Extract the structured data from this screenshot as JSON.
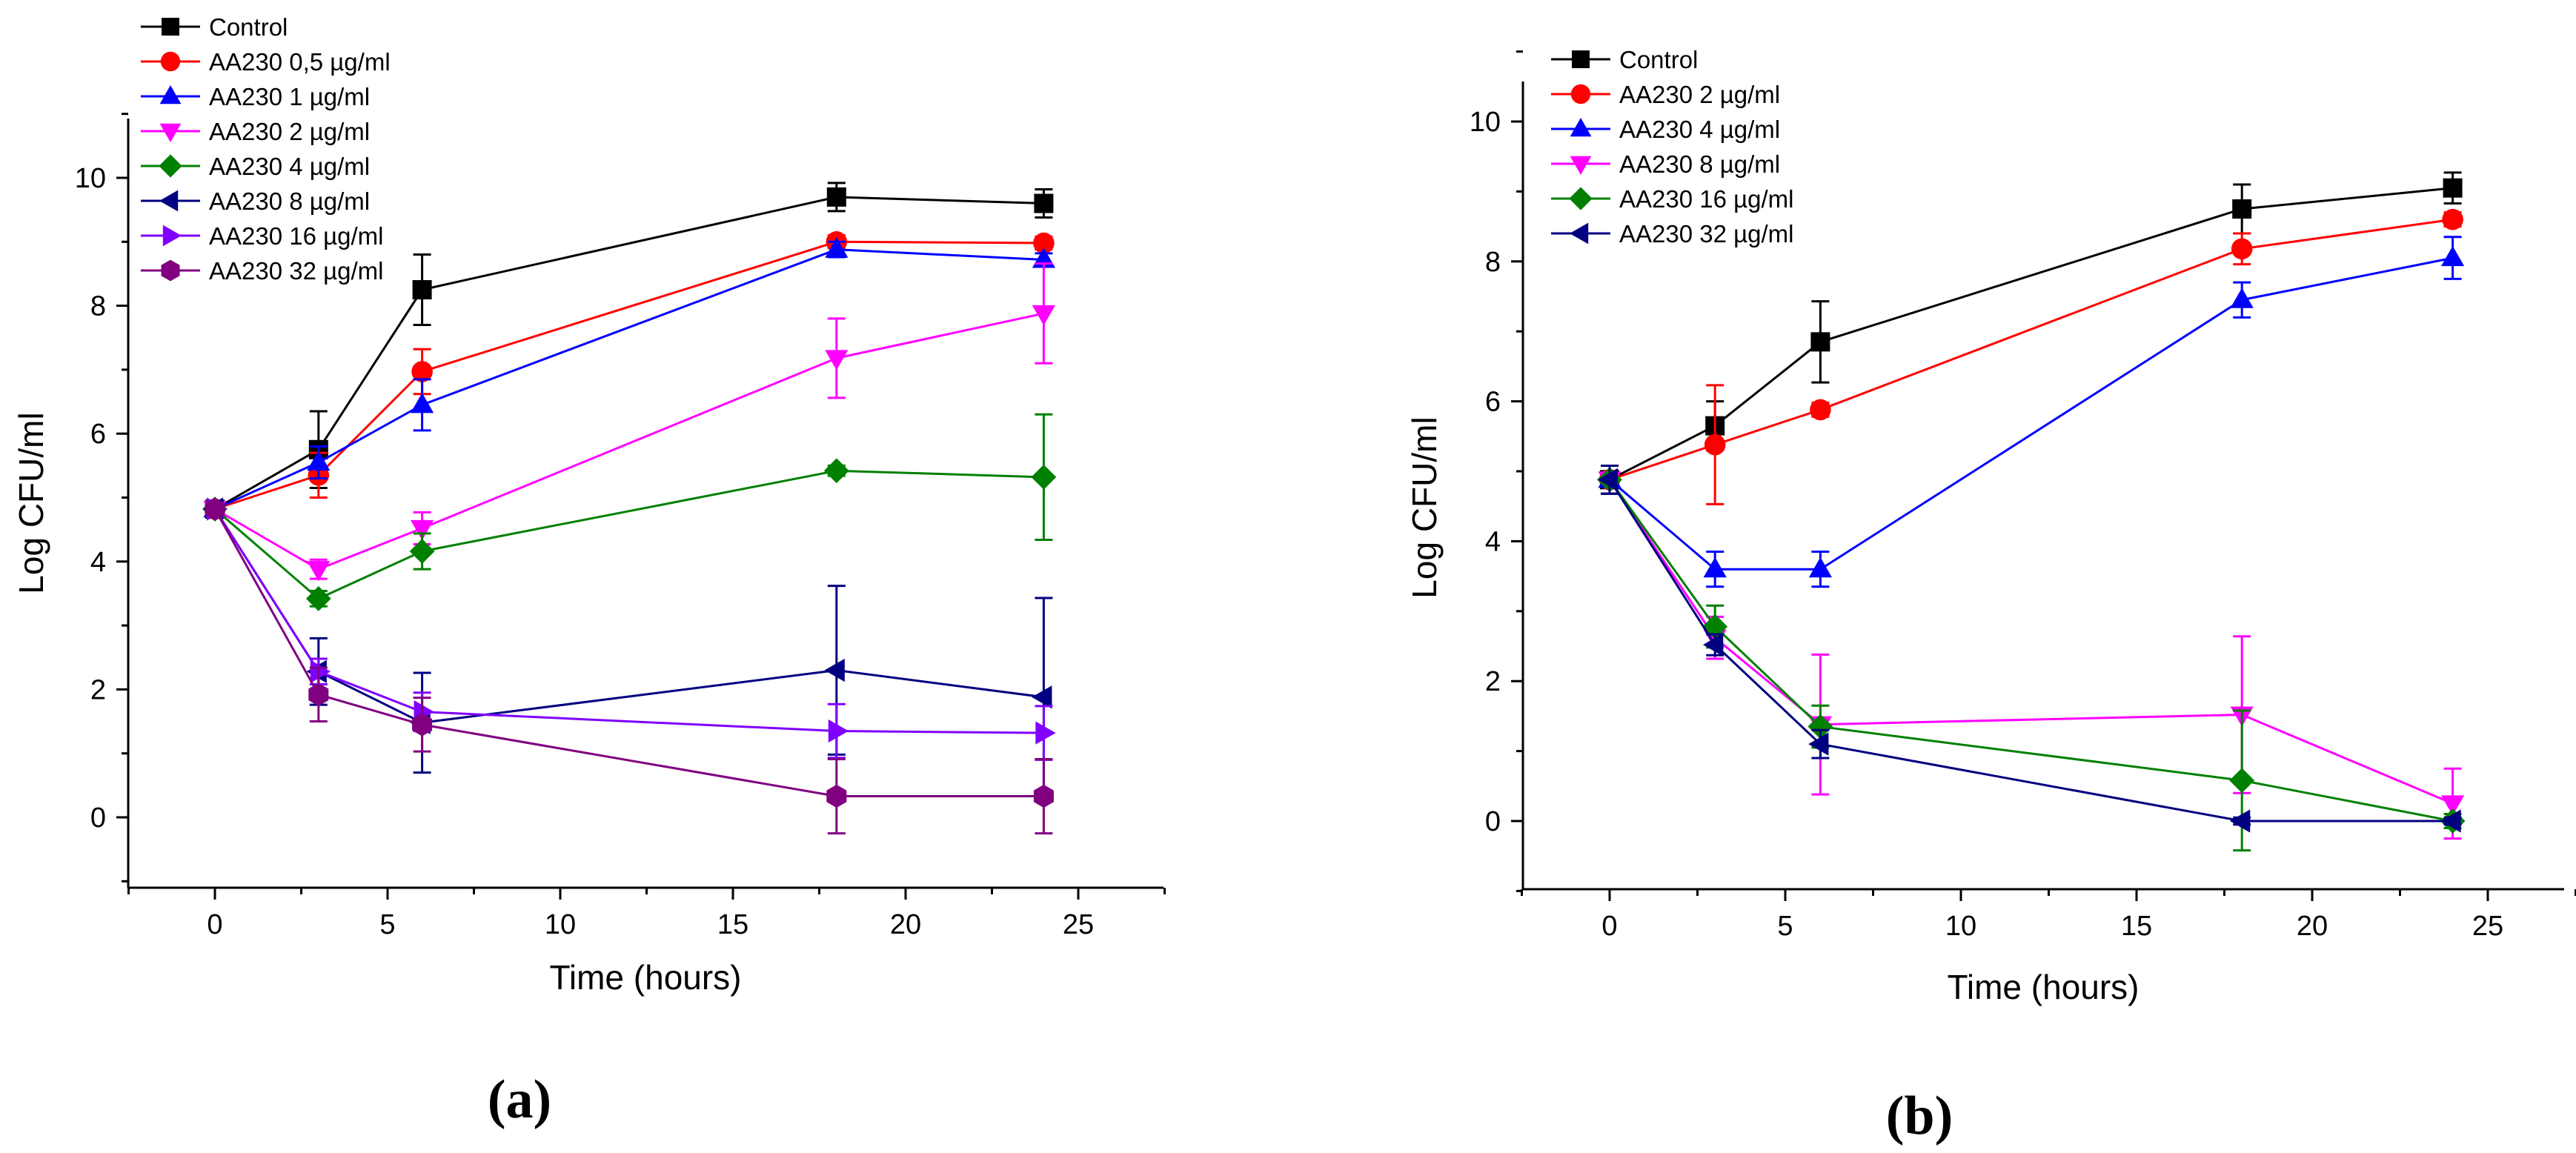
{
  "chart_data": [
    {
      "type": "line",
      "panel_label": "(a)",
      "xlabel": "Time (hours)",
      "ylabel": "Log CFU/ml",
      "xlim": [
        -2.5,
        27.5
      ],
      "ylim": [
        -1,
        11
      ],
      "xticks": [
        "0",
        "5",
        "10",
        "15",
        "20",
        "25"
      ],
      "yticks": [
        "0",
        "2",
        "4",
        "6",
        "8",
        "10"
      ],
      "grid": false,
      "legend_position": "top-left",
      "x": [
        0,
        3,
        6,
        18,
        24
      ],
      "series": [
        {
          "name": "Control",
          "color": "#000000",
          "marker": "square",
          "values": [
            4.82,
            5.75,
            8.25,
            9.7,
            9.6
          ],
          "errors": [
            0.1,
            0.6,
            0.55,
            0.22,
            0.22
          ]
        },
        {
          "name": "AA230 0,5 µg/ml",
          "color": "#ff0000",
          "marker": "circle",
          "values": [
            4.82,
            5.35,
            6.97,
            9.0,
            8.98
          ],
          "errors": [
            0.1,
            0.35,
            0.35,
            0.1,
            0.1
          ]
        },
        {
          "name": "AA230 1 µg/ml",
          "color": "#0000ff",
          "marker": "triangle-up",
          "values": [
            4.82,
            5.55,
            6.45,
            8.88,
            8.72
          ],
          "errors": [
            0.1,
            0.25,
            0.4,
            0.12,
            0.1
          ]
        },
        {
          "name": "AA230 2 µg/ml",
          "color": "#ff00ff",
          "marker": "triangle-down",
          "values": [
            4.82,
            3.88,
            4.52,
            7.18,
            7.88
          ],
          "errors": [
            0.1,
            0.15,
            0.25,
            0.62,
            0.78
          ]
        },
        {
          "name": "AA230 4 µg/ml",
          "color": "#008000",
          "marker": "diamond",
          "values": [
            4.82,
            3.42,
            4.16,
            5.42,
            5.32
          ],
          "errors": [
            0.1,
            0.12,
            0.28,
            0.08,
            0.98
          ]
        },
        {
          "name": "AA230 8 µg/ml",
          "color": "#000080",
          "marker": "triangle-left",
          "values": [
            4.82,
            2.28,
            1.48,
            2.3,
            1.88
          ],
          "errors": [
            0.1,
            0.52,
            0.78,
            1.32,
            1.55
          ]
        },
        {
          "name": "AA230 16 µg/ml",
          "color": "#8000ff",
          "marker": "triangle-right",
          "values": [
            4.82,
            2.28,
            1.65,
            1.35,
            1.32
          ],
          "errors": [
            0.1,
            0.2,
            0.3,
            0.42,
            0.42
          ]
        },
        {
          "name": "AA230 32 µg/ml",
          "color": "#800080",
          "marker": "hexagon",
          "values": [
            4.82,
            1.92,
            1.45,
            0.33,
            0.33
          ],
          "errors": [
            0.1,
            0.42,
            0.42,
            0.58,
            0.58
          ]
        }
      ]
    },
    {
      "type": "line",
      "panel_label": "(b)",
      "xlabel": "Time (hours)",
      "ylabel": "Log CFU/ml",
      "xlim": [
        -2.5,
        27.5
      ],
      "ylim": [
        -1,
        11
      ],
      "xticks": [
        "0",
        "5",
        "10",
        "15",
        "20",
        "25"
      ],
      "yticks": [
        "0",
        "2",
        "4",
        "6",
        "8",
        "10"
      ],
      "grid": false,
      "legend_position": "top-left",
      "x": [
        0,
        3,
        6,
        18,
        24
      ],
      "series": [
        {
          "name": "Control",
          "color": "#000000",
          "marker": "square",
          "values": [
            4.88,
            5.65,
            6.85,
            8.75,
            9.05
          ],
          "errors": [
            0.2,
            0.35,
            0.58,
            0.35,
            0.22
          ]
        },
        {
          "name": "AA230 2 µg/ml",
          "color": "#ff0000",
          "marker": "circle",
          "values": [
            4.88,
            5.38,
            5.88,
            8.18,
            8.6
          ],
          "errors": [
            0.2,
            0.85,
            0.1,
            0.22,
            0.1
          ]
        },
        {
          "name": "AA230 4 µg/ml",
          "color": "#0000ff",
          "marker": "triangle-up",
          "values": [
            4.88,
            3.6,
            3.6,
            7.45,
            8.05
          ],
          "errors": [
            0.2,
            0.25,
            0.25,
            0.25,
            0.3
          ]
        },
        {
          "name": "AA230 8 µg/ml",
          "color": "#ff00ff",
          "marker": "triangle-down",
          "values": [
            4.88,
            2.62,
            1.38,
            1.52,
            0.25
          ],
          "errors": [
            0.2,
            0.3,
            1.0,
            1.12,
            0.5
          ]
        },
        {
          "name": "AA230 16 µg/ml",
          "color": "#008000",
          "marker": "diamond",
          "values": [
            4.88,
            2.78,
            1.35,
            0.58,
            0.0
          ],
          "errors": [
            0.2,
            0.3,
            0.3,
            1.0,
            0.1
          ]
        },
        {
          "name": "AA230 32 µg/ml",
          "color": "#000080",
          "marker": "triangle-left",
          "values": [
            4.88,
            2.52,
            1.1,
            0.0,
            0.0
          ],
          "errors": [
            0.2,
            0.15,
            0.2,
            0.05,
            0.05
          ]
        }
      ]
    }
  ]
}
